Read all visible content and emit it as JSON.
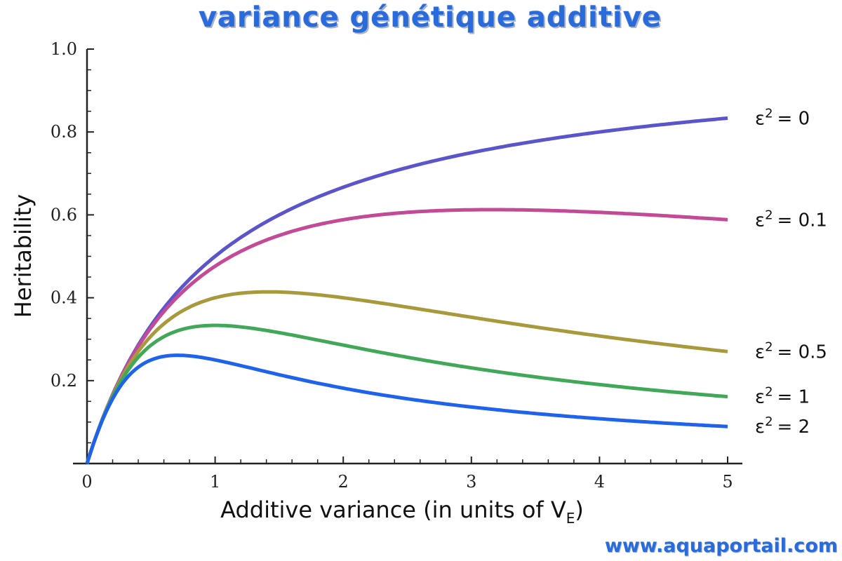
{
  "chart_data": {
    "type": "line",
    "title": "variance génétique additive",
    "xlabel": "Additive variance (in units of V",
    "xlabel_sub": "E",
    "xlabel_close": ")",
    "ylabel": "Heritability",
    "xlim": [
      0,
      5
    ],
    "ylim": [
      0,
      1.0
    ],
    "x_ticks": [
      0,
      1,
      2,
      3,
      4,
      5
    ],
    "x_tick_labels": [
      "0",
      "1",
      "2",
      "3",
      "4",
      "5"
    ],
    "y_ticks": [
      0.2,
      0.4,
      0.6,
      0.8,
      1.0
    ],
    "y_tick_labels": [
      "0.2",
      "0.4",
      "0.6",
      "0.8",
      "1.0"
    ],
    "grid": false,
    "series": [
      {
        "name": "ε² = 0",
        "eps2": 0,
        "color": "#5b55cc"
      },
      {
        "name": "ε² = 0.1",
        "eps2": 0.1,
        "color": "#c24a96"
      },
      {
        "name": "ε² = 0.5",
        "eps2": 0.5,
        "color": "#a89a3c"
      },
      {
        "name": "ε² = 1",
        "eps2": 1,
        "color": "#41a85a"
      },
      {
        "name": "ε² = 2",
        "eps2": 2,
        "color": "#1f63ec"
      }
    ],
    "series_label_prefix": "ε",
    "series_label_sup": "2",
    "series_label_values": [
      "= 0",
      "= 0.1",
      "= 0.5",
      "= 1",
      "= 2"
    ]
  },
  "watermark": "www.aquaportail.com"
}
